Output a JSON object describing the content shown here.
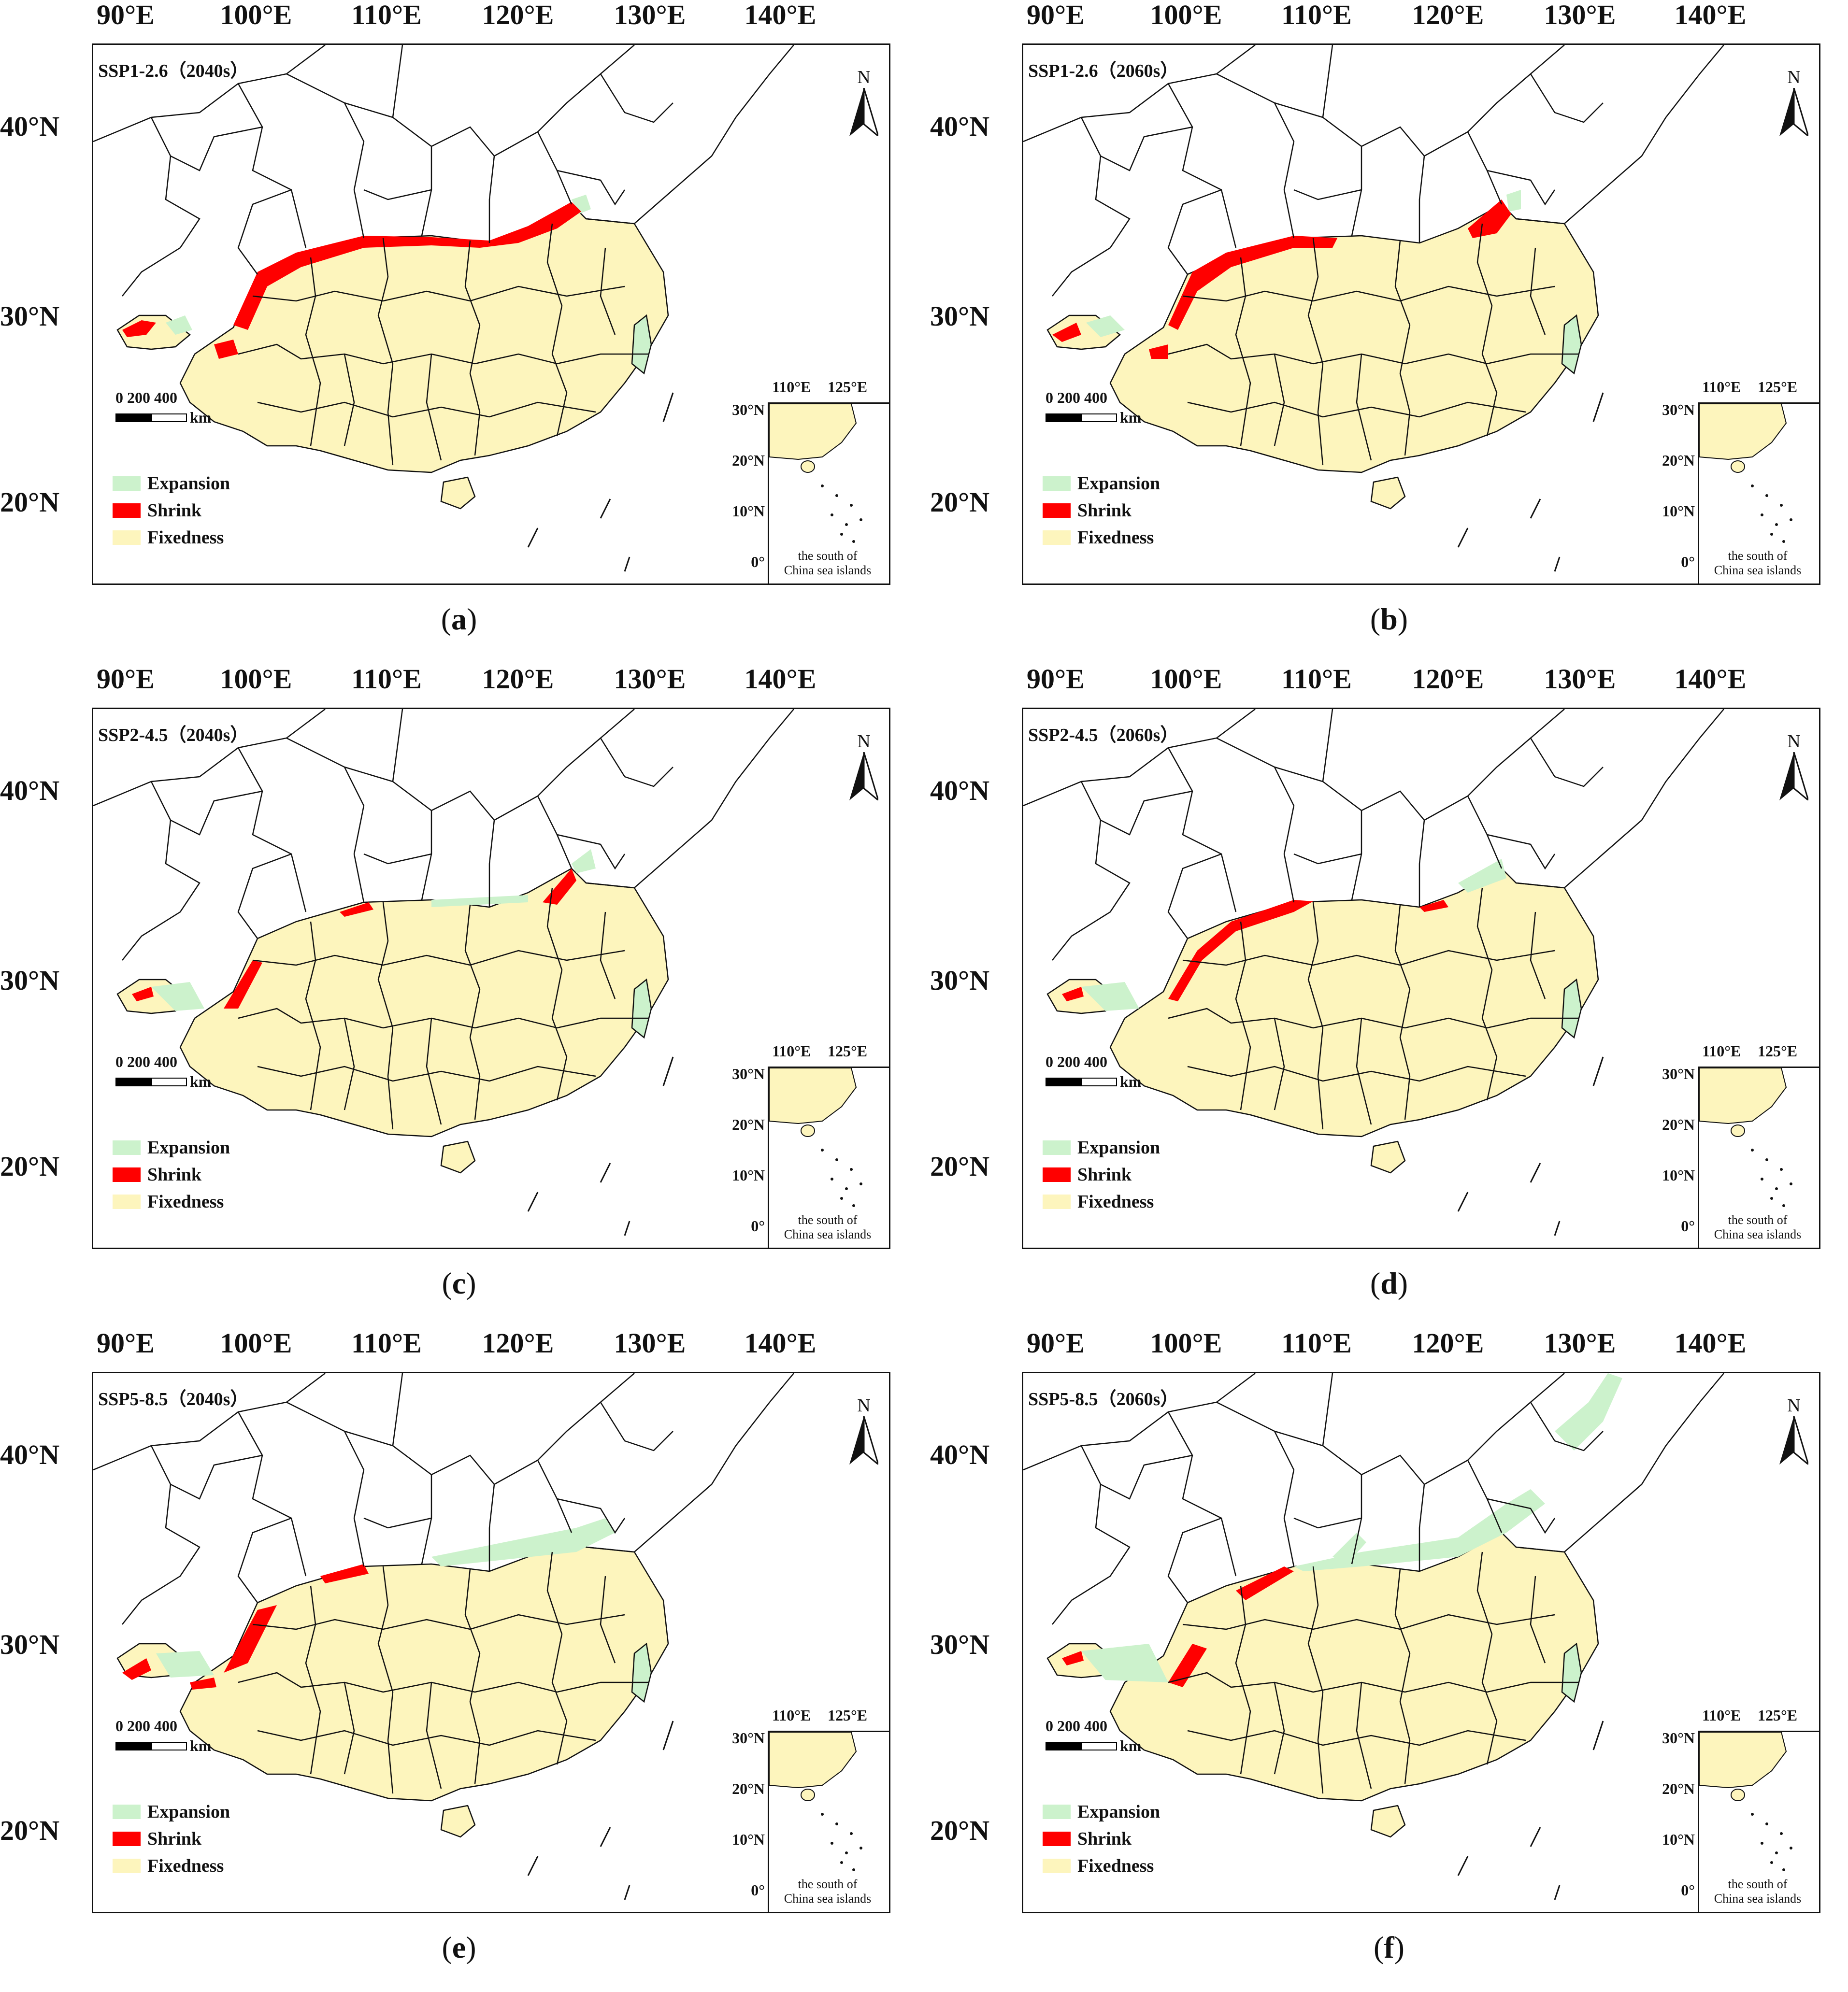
{
  "lon_ticks": [
    "90°E",
    "100°E",
    "110°E",
    "120°E",
    "130°E",
    "140°E"
  ],
  "lat_ticks": [
    "40°N",
    "30°N",
    "20°N"
  ],
  "inset": {
    "lon_ticks": [
      "110°E",
      "125°E"
    ],
    "lat_ticks": [
      "30°N",
      "20°N",
      "10°N",
      "0°"
    ],
    "caption_line1": "the south of",
    "caption_line2": "China sea islands"
  },
  "north_label": "N",
  "scale": {
    "label": "0   200 400",
    "unit": "km"
  },
  "legend": [
    {
      "label": "Expansion",
      "color": "#ccf2cc"
    },
    {
      "label": "Shrink",
      "color": "#ff0000"
    },
    {
      "label": "Fixedness",
      "color": "#fdf5bd"
    }
  ],
  "colors": {
    "fixedness": "#fdf5bd",
    "expansion": "#ccf2cc",
    "shrink": "#ff0000",
    "border": "#111111"
  },
  "panels": [
    {
      "id": "a",
      "scenario": "SSP1-2.6（2040s）",
      "caption_letter": "a"
    },
    {
      "id": "b",
      "scenario": "SSP1-2.6（2060s）",
      "caption_letter": "b"
    },
    {
      "id": "c",
      "scenario": "SSP2-4.5（2040s）",
      "caption_letter": "c"
    },
    {
      "id": "d",
      "scenario": "SSP2-4.5（2060s）",
      "caption_letter": "d"
    },
    {
      "id": "e",
      "scenario": "SSP5-8.5（2040s）",
      "caption_letter": "e"
    },
    {
      "id": "f",
      "scenario": "SSP5-8.5（2060s）",
      "caption_letter": "f"
    }
  ]
}
